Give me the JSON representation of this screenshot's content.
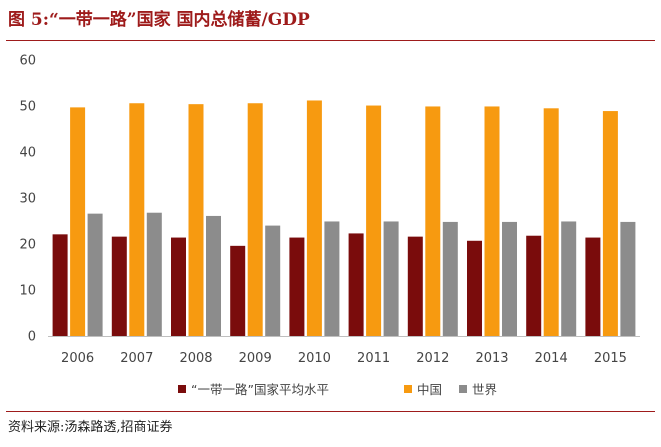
{
  "figure": {
    "title": "图 5:“一带一路”国家 国内总储蓄/GDP",
    "source": "资料来源:汤森路透,招商证券"
  },
  "chart_data": {
    "type": "bar",
    "title": "图 5:“一带一路”国家 国内总储蓄/GDP",
    "xlabel": "",
    "ylabel": "",
    "ylim": [
      0,
      60
    ],
    "yticks": [
      0,
      10,
      20,
      30,
      40,
      50,
      60
    ],
    "grid": false,
    "legend_position": "bottom",
    "categories": [
      "2006",
      "2007",
      "2008",
      "2009",
      "2010",
      "2011",
      "2012",
      "2013",
      "2014",
      "2015"
    ],
    "series": [
      {
        "name": "“一带一路”国家平均水平",
        "color": "#7a0c0c",
        "values": [
          22.1,
          21.6,
          21.4,
          19.6,
          21.4,
          22.3,
          21.6,
          20.7,
          21.8,
          21.4
        ]
      },
      {
        "name": "中国",
        "color": "#f79a10",
        "values": [
          49.7,
          50.6,
          50.4,
          50.6,
          51.2,
          50.1,
          49.9,
          49.9,
          49.5,
          48.9
        ]
      },
      {
        "name": "世界",
        "color": "#8c8c8c",
        "values": [
          26.6,
          26.8,
          26.1,
          24.0,
          24.9,
          24.9,
          24.8,
          24.8,
          24.9,
          24.8
        ]
      }
    ]
  }
}
